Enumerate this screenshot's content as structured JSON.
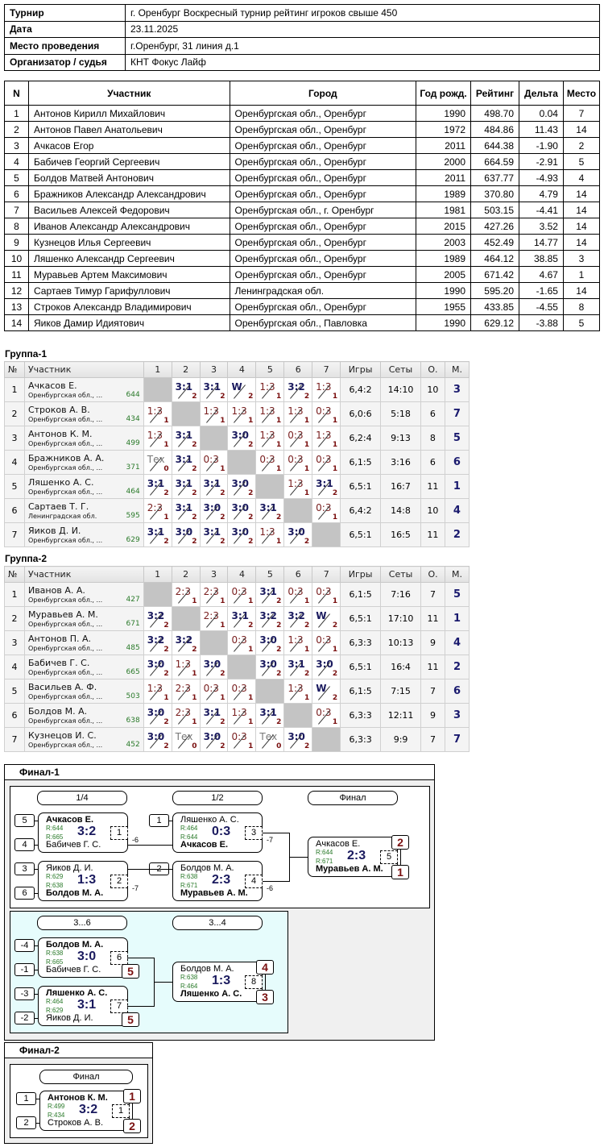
{
  "info": [
    {
      "label": "Турнир",
      "value": "г. Оренбург Воскресный турнир рейтинг игроков свыше 450"
    },
    {
      "label": "Дата",
      "value": "23.11.2025"
    },
    {
      "label": "Место проведения",
      "value": "г.Оренбург, 31 линия д.1"
    },
    {
      "label": "Организатор / судья",
      "value": "КНТ Фокус Лайф"
    }
  ],
  "participants": {
    "headers": [
      "N",
      "Участник",
      "Город",
      "Год рожд.",
      "Рейтинг",
      "Дельта",
      "Место"
    ],
    "rows": [
      [
        "1",
        "Антонов Кирилл Михайлович",
        "Оренбургская обл., Оренбург",
        "1990",
        "498.70",
        "0.04",
        "7"
      ],
      [
        "2",
        "Антонов Павел Анатольевич",
        "Оренбургская обл., Оренбург",
        "1972",
        "484.86",
        "11.43",
        "14"
      ],
      [
        "3",
        "Ачкасов Егор",
        "Оренбургская обл., Оренбург",
        "2011",
        "644.38",
        "-1.90",
        "2"
      ],
      [
        "4",
        "Бабичев Георгий Сергеевич",
        "Оренбургская обл., Оренбург",
        "2000",
        "664.59",
        "-2.91",
        "5"
      ],
      [
        "5",
        "Болдов Матвей Антонович",
        "Оренбургская обл., Оренбург",
        "2011",
        "637.77",
        "-4.93",
        "4"
      ],
      [
        "6",
        "Бражников Александр Александрович",
        "Оренбургская обл., Оренбург",
        "1989",
        "370.80",
        "4.79",
        "14"
      ],
      [
        "7",
        "Васильев Алексей Федорович",
        "Оренбургская обл., г. Оренбург",
        "1981",
        "503.15",
        "-4.41",
        "14"
      ],
      [
        "8",
        "Иванов Александр Александрович",
        "Оренбургская обл., Оренбург",
        "2015",
        "427.26",
        "3.52",
        "14"
      ],
      [
        "9",
        "Кузнецов Илья Сергеевич",
        "Оренбургская обл., Оренбург",
        "2003",
        "452.49",
        "14.77",
        "14"
      ],
      [
        "10",
        "Ляшенко Александр Сергеевич",
        "Оренбургская обл., Оренбург",
        "1989",
        "464.12",
        "38.85",
        "3"
      ],
      [
        "11",
        "Муравьев Артем Максимович",
        "Оренбургская обл., Оренбург",
        "2005",
        "671.42",
        "4.67",
        "1"
      ],
      [
        "12",
        "Сартаев Тимур Гарифуллович",
        "Ленинградская обл.",
        "1990",
        "595.20",
        "-1.65",
        "14"
      ],
      [
        "13",
        "Строков Александр Владимирович",
        "Оренбургская обл., Оренбург",
        "1955",
        "433.85",
        "-4.55",
        "8"
      ],
      [
        "14",
        "Яиков Дамир Идиятович",
        "Оренбургская обл., Павловка",
        "1990",
        "629.12",
        "-3.88",
        "5"
      ]
    ]
  },
  "group_headers": [
    "№",
    "Участник",
    "1",
    "2",
    "3",
    "4",
    "5",
    "6",
    "7",
    "Игры",
    "Сеты",
    "О.",
    "М."
  ],
  "groups": [
    {
      "title": "Группа-1",
      "rows": [
        {
          "n": "1",
          "name": "Ачкасов Е.",
          "region": "Оренбургская обл., ...",
          "rating": "644",
          "results": [
            null,
            [
              "3:1",
              "2"
            ],
            [
              "3:1",
              "2"
            ],
            [
              "W",
              "2"
            ],
            [
              "1:3",
              "1"
            ],
            [
              "3:2",
              "2"
            ],
            [
              "1:3",
              "1"
            ]
          ],
          "games": "6,4:2",
          "sets": "14:10",
          "points": "10",
          "place": "3"
        },
        {
          "n": "2",
          "name": "Строков А. В.",
          "region": "Оренбургская обл., ...",
          "rating": "434",
          "results": [
            [
              "1:3",
              "1"
            ],
            null,
            [
              "1:3",
              "1"
            ],
            [
              "1:3",
              "1"
            ],
            [
              "1:3",
              "1"
            ],
            [
              "1:3",
              "1"
            ],
            [
              "0:3",
              "1"
            ]
          ],
          "games": "6,0:6",
          "sets": "5:18",
          "points": "6",
          "place": "7"
        },
        {
          "n": "3",
          "name": "Антонов К. М.",
          "region": "Оренбургская обл., ...",
          "rating": "499",
          "results": [
            [
              "1:3",
              "1"
            ],
            [
              "3:1",
              "2"
            ],
            null,
            [
              "3:0",
              "2"
            ],
            [
              "1:3",
              "1"
            ],
            [
              "0:3",
              "1"
            ],
            [
              "1:3",
              "1"
            ]
          ],
          "games": "6,2:4",
          "sets": "9:13",
          "points": "8",
          "place": "5"
        },
        {
          "n": "4",
          "name": "Бражников А. А.",
          "region": "Оренбургская обл., ...",
          "rating": "371",
          "results": [
            [
              "Тех",
              "0"
            ],
            [
              "3:1",
              "2"
            ],
            [
              "0:3",
              "1"
            ],
            null,
            [
              "0:3",
              "1"
            ],
            [
              "0:3",
              "1"
            ],
            [
              "0:3",
              "1"
            ]
          ],
          "games": "6,1:5",
          "sets": "3:16",
          "points": "6",
          "place": "6"
        },
        {
          "n": "5",
          "name": "Ляшенко А. С.",
          "region": "Оренбургская обл., ...",
          "rating": "464",
          "results": [
            [
              "3:1",
              "2"
            ],
            [
              "3:1",
              "2"
            ],
            [
              "3:1",
              "2"
            ],
            [
              "3:0",
              "2"
            ],
            null,
            [
              "1:3",
              "1"
            ],
            [
              "3:1",
              "2"
            ]
          ],
          "games": "6,5:1",
          "sets": "16:7",
          "points": "11",
          "place": "1"
        },
        {
          "n": "6",
          "name": "Сартаев Т. Г.",
          "region": "Ленинградская обл.",
          "rating": "595",
          "results": [
            [
              "2:3",
              "1"
            ],
            [
              "3:1",
              "2"
            ],
            [
              "3:0",
              "2"
            ],
            [
              "3:0",
              "2"
            ],
            [
              "3:1",
              "2"
            ],
            null,
            [
              "0:3",
              "1"
            ]
          ],
          "games": "6,4:2",
          "sets": "14:8",
          "points": "10",
          "place": "4"
        },
        {
          "n": "7",
          "name": "Яиков Д. И.",
          "region": "Оренбургская обл., ...",
          "rating": "629",
          "results": [
            [
              "3:1",
              "2"
            ],
            [
              "3:0",
              "2"
            ],
            [
              "3:1",
              "2"
            ],
            [
              "3:0",
              "2"
            ],
            [
              "1:3",
              "1"
            ],
            [
              "3:0",
              "2"
            ],
            null
          ],
          "games": "6,5:1",
          "sets": "16:5",
          "points": "11",
          "place": "2"
        }
      ]
    },
    {
      "title": "Группа-2",
      "rows": [
        {
          "n": "1",
          "name": "Иванов А. А.",
          "region": "Оренбургская обл., ...",
          "rating": "427",
          "results": [
            null,
            [
              "2:3",
              "1"
            ],
            [
              "2:3",
              "1"
            ],
            [
              "0:3",
              "1"
            ],
            [
              "3:1",
              "2"
            ],
            [
              "0:3",
              "1"
            ],
            [
              "0:3",
              "1"
            ]
          ],
          "games": "6,1:5",
          "sets": "7:16",
          "points": "7",
          "place": "5"
        },
        {
          "n": "2",
          "name": "Муравьев А. М.",
          "region": "Оренбургская обл., ...",
          "rating": "671",
          "results": [
            [
              "3:2",
              "2"
            ],
            null,
            [
              "2:3",
              "1"
            ],
            [
              "3:1",
              "2"
            ],
            [
              "3:2",
              "2"
            ],
            [
              "3:2",
              "2"
            ],
            [
              "W",
              "2"
            ]
          ],
          "games": "6,5:1",
          "sets": "17:10",
          "points": "11",
          "place": "1"
        },
        {
          "n": "3",
          "name": "Антонов П. А.",
          "region": "Оренбургская обл., ...",
          "rating": "485",
          "results": [
            [
              "3:2",
              "2"
            ],
            [
              "3:2",
              "2"
            ],
            null,
            [
              "0:3",
              "1"
            ],
            [
              "3:0",
              "2"
            ],
            [
              "1:3",
              "1"
            ],
            [
              "0:3",
              "1"
            ]
          ],
          "games": "6,3:3",
          "sets": "10:13",
          "points": "9",
          "place": "4"
        },
        {
          "n": "4",
          "name": "Бабичев Г. С.",
          "region": "Оренбургская обл., ...",
          "rating": "665",
          "results": [
            [
              "3:0",
              "2"
            ],
            [
              "1:3",
              "1"
            ],
            [
              "3:0",
              "2"
            ],
            null,
            [
              "3:0",
              "2"
            ],
            [
              "3:1",
              "2"
            ],
            [
              "3:0",
              "2"
            ]
          ],
          "games": "6,5:1",
          "sets": "16:4",
          "points": "11",
          "place": "2"
        },
        {
          "n": "5",
          "name": "Васильев А. Ф.",
          "region": "Оренбургская обл., ...",
          "rating": "503",
          "results": [
            [
              "1:3",
              "1"
            ],
            [
              "2:3",
              "1"
            ],
            [
              "0:3",
              "1"
            ],
            [
              "0:3",
              "1"
            ],
            null,
            [
              "1:3",
              "1"
            ],
            [
              "W",
              "2"
            ]
          ],
          "games": "6,1:5",
          "sets": "7:15",
          "points": "7",
          "place": "6"
        },
        {
          "n": "6",
          "name": "Болдов М. А.",
          "region": "Оренбургская обл., ...",
          "rating": "638",
          "results": [
            [
              "3:0",
              "2"
            ],
            [
              "2:3",
              "1"
            ],
            [
              "3:1",
              "2"
            ],
            [
              "1:3",
              "1"
            ],
            [
              "3:1",
              "2"
            ],
            null,
            [
              "0:3",
              "1"
            ]
          ],
          "games": "6,3:3",
          "sets": "12:11",
          "points": "9",
          "place": "3"
        },
        {
          "n": "7",
          "name": "Кузнецов И. С.",
          "region": "Оренбургская обл., ...",
          "rating": "452",
          "results": [
            [
              "3:0",
              "2"
            ],
            [
              "Тех",
              "0"
            ],
            [
              "3:0",
              "2"
            ],
            [
              "0:3",
              "1"
            ],
            [
              "Тех",
              "0"
            ],
            [
              "3:0",
              "2"
            ],
            null
          ],
          "games": "6,3:3",
          "sets": "9:9",
          "points": "7",
          "place": "7"
        }
      ]
    }
  ],
  "final1": {
    "title": "Финал-1",
    "rounds": [
      "1/4",
      "1/2",
      "Финал"
    ],
    "cons_rounds": [
      "3...6",
      "3...4"
    ],
    "matches": [
      {
        "top": "Ачкасов Е.",
        "bottom": "Бабичев Г. С.",
        "r1": "R:644",
        "r2": "R:665",
        "score": "3:2",
        "no": "1",
        "win": "top",
        "seeds": [
          "5",
          "4"
        ],
        "loser": "-6"
      },
      {
        "top": "Яиков Д. И.",
        "bottom": "Болдов М. А.",
        "r1": "R:629",
        "r2": "R:638",
        "score": "1:3",
        "no": "2",
        "win": "bottom",
        "seeds": [
          "3",
          "6"
        ],
        "loser": "-7"
      },
      {
        "top": "Ляшенко А. С.",
        "bottom": "Ачкасов Е.",
        "r1": "R:464",
        "r2": "R:644",
        "score": "0:3",
        "no": "3",
        "win": "bottom",
        "seeds": [
          "1"
        ],
        "loser": "-7"
      },
      {
        "top": "Болдов М. А.",
        "bottom": "Муравьев А. М.",
        "r1": "R:638",
        "r2": "R:671",
        "score": "2:3",
        "no": "4",
        "win": "bottom",
        "seeds": [
          "2"
        ],
        "loser": "-6"
      },
      {
        "top": "Ачкасов Е.",
        "bottom": "Муравьев А. М.",
        "r1": "R:644",
        "r2": "R:671",
        "score": "2:3",
        "no": "5",
        "win": "bottom",
        "places": [
          "2",
          "1"
        ]
      },
      {
        "top": "Болдов М. А.",
        "bottom": "Бабичев Г. С.",
        "r1": "R:638",
        "r2": "R:665",
        "score": "3:0",
        "no": "6",
        "win": "top",
        "seeds": [
          "-4",
          "-1"
        ],
        "places": [
          "5"
        ]
      },
      {
        "top": "Ляшенко А. С.",
        "bottom": "Яиков Д. И.",
        "r1": "R:464",
        "r2": "R:629",
        "score": "3:1",
        "no": "7",
        "win": "top",
        "seeds": [
          "-3",
          "-2"
        ],
        "places": [
          "5"
        ]
      },
      {
        "top": "Болдов М. А.",
        "bottom": "Ляшенко А. С.",
        "r1": "R:638",
        "r2": "R:464",
        "score": "1:3",
        "no": "8",
        "win": "bottom",
        "places": [
          "4",
          "3"
        ]
      }
    ]
  },
  "final2": {
    "title": "Финал-2",
    "rounds": [
      "Финал"
    ],
    "matches": [
      {
        "top": "Антонов К. М.",
        "bottom": "Строков А. В.",
        "r1": "R:499",
        "r2": "R:434",
        "score": "3:2",
        "no": "1",
        "win": "top",
        "seeds": [
          "1",
          "2"
        ],
        "places": [
          "1",
          "2"
        ]
      }
    ]
  }
}
